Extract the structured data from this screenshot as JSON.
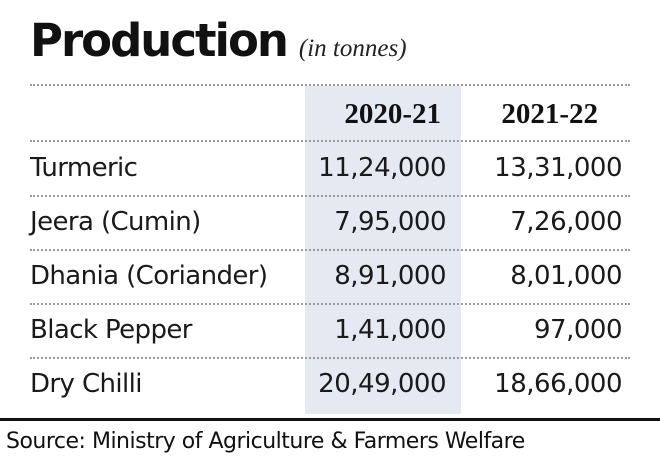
{
  "title": "Production",
  "unit_note": "(in tonnes)",
  "source": "Source: Ministry of Agriculture & Farmers Welfare",
  "colors": {
    "highlight_column": "#e4e9f2",
    "text": "#1a1a1a",
    "rule": "#9a9a9a"
  },
  "chart_data": {
    "type": "table",
    "title": "Production",
    "subtitle": "(in tonnes)",
    "columns": [
      "2020-21",
      "2021-22"
    ],
    "highlighted_column": "2020-21",
    "rows": [
      {
        "name": "Turmeric",
        "values": [
          "11,24,000",
          "13,31,000"
        ]
      },
      {
        "name": "Jeera (Cumin)",
        "values": [
          "7,95,000",
          "7,26,000"
        ]
      },
      {
        "name": "Dhania (Coriander)",
        "values": [
          "8,91,000",
          "8,01,000"
        ]
      },
      {
        "name": "Black Pepper",
        "values": [
          "1,41,000",
          "97,000"
        ]
      },
      {
        "name": "Dry Chilli",
        "values": [
          "20,49,000",
          "18,66,000"
        ]
      }
    ],
    "source": "Source: Ministry of Agriculture & Farmers Welfare"
  }
}
